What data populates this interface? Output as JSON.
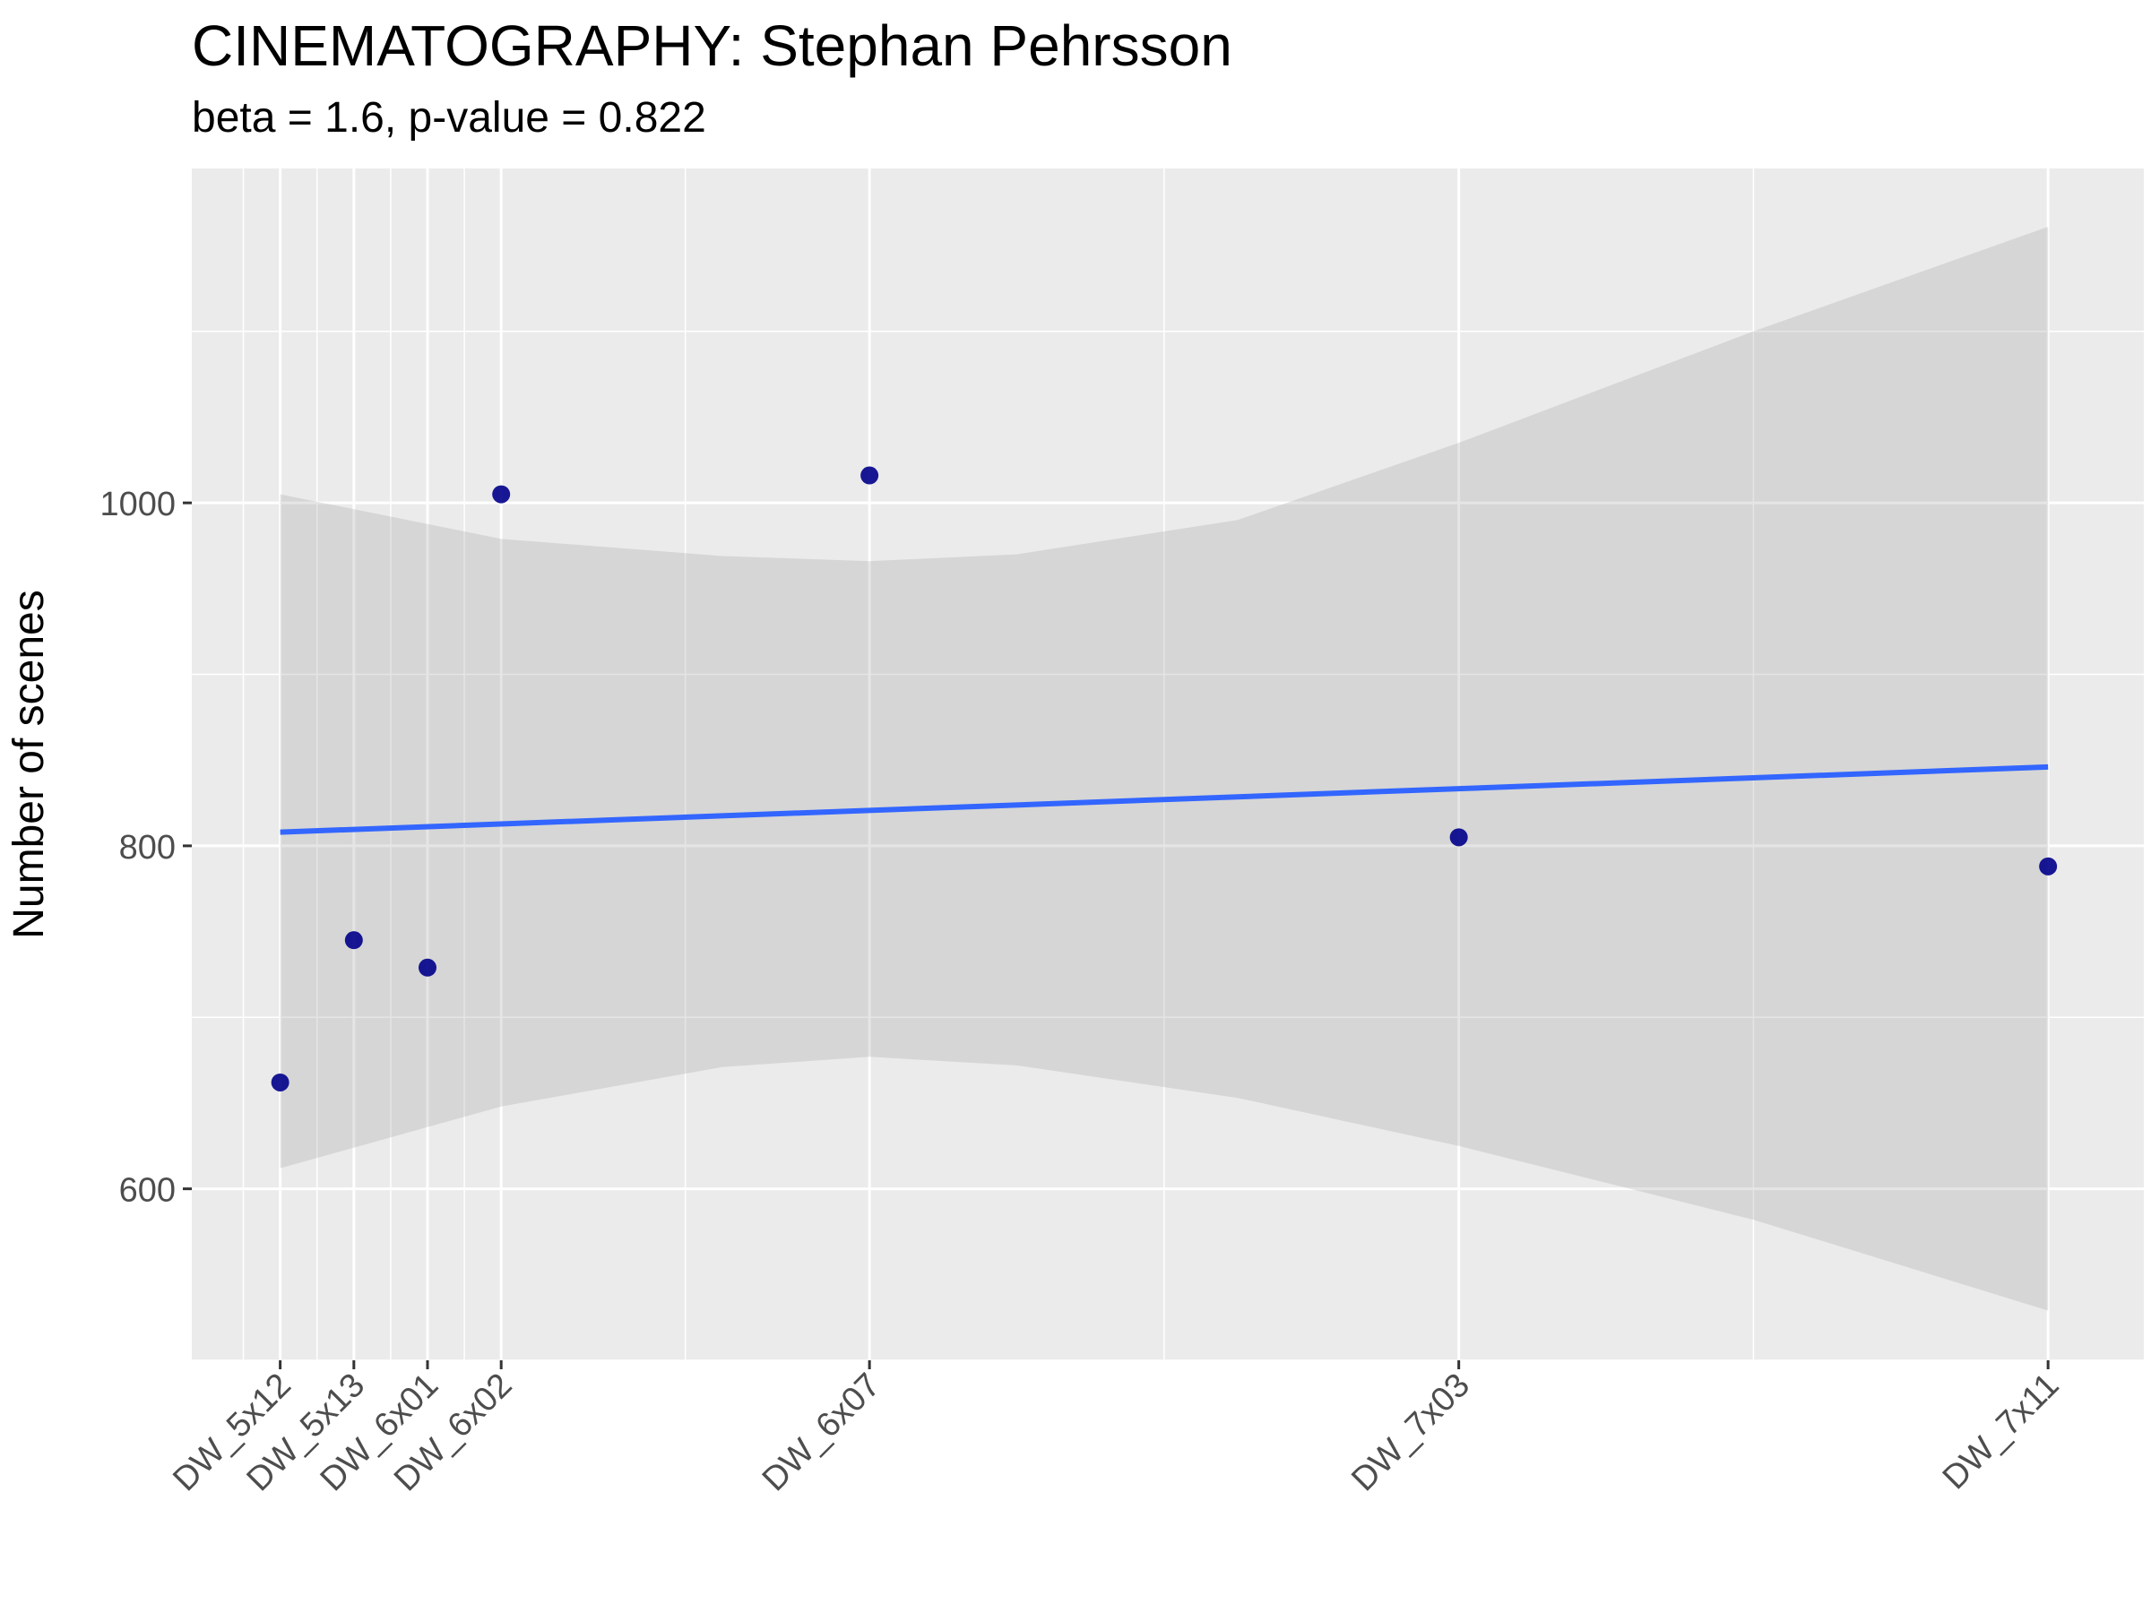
{
  "chart_data": {
    "type": "scatter",
    "title": "CINEMATOGRAPHY: Stephan Pehrsson",
    "subtitle": "beta = 1.6, p-value = 0.822",
    "xlabel": "",
    "ylabel": "Number of scenes",
    "x_type": "category",
    "x_positions": [
      0,
      1,
      2,
      3,
      8,
      16,
      24
    ],
    "categories": [
      "DW_5x12",
      "DW_5x13",
      "DW_6x01",
      "DW_6x02",
      "DW_6x07",
      "DW_7x03",
      "DW_7x11"
    ],
    "values": [
      662,
      745,
      729,
      1005,
      1016,
      805,
      788
    ],
    "xlim": [
      -1.2,
      25.3
    ],
    "ylim": [
      500,
      1195
    ],
    "yticks": [
      600,
      800,
      1000
    ],
    "grid": true,
    "legend": "none",
    "trend_line": {
      "x": [
        0,
        24
      ],
      "y": [
        808,
        846
      ]
    },
    "confidence_band": {
      "x": [
        0,
        3,
        6,
        8,
        10,
        13,
        16,
        20,
        24
      ],
      "lower": [
        612,
        648,
        671,
        677,
        672,
        653,
        625,
        582,
        529
      ],
      "upper": [
        1005,
        979,
        969,
        966,
        970,
        990,
        1035,
        1100,
        1161
      ]
    },
    "colors": {
      "panel": "#EBEBEB",
      "grid": "#FFFFFF",
      "points": "#00008B",
      "trend": "#3366FF",
      "band": "#999999"
    }
  }
}
